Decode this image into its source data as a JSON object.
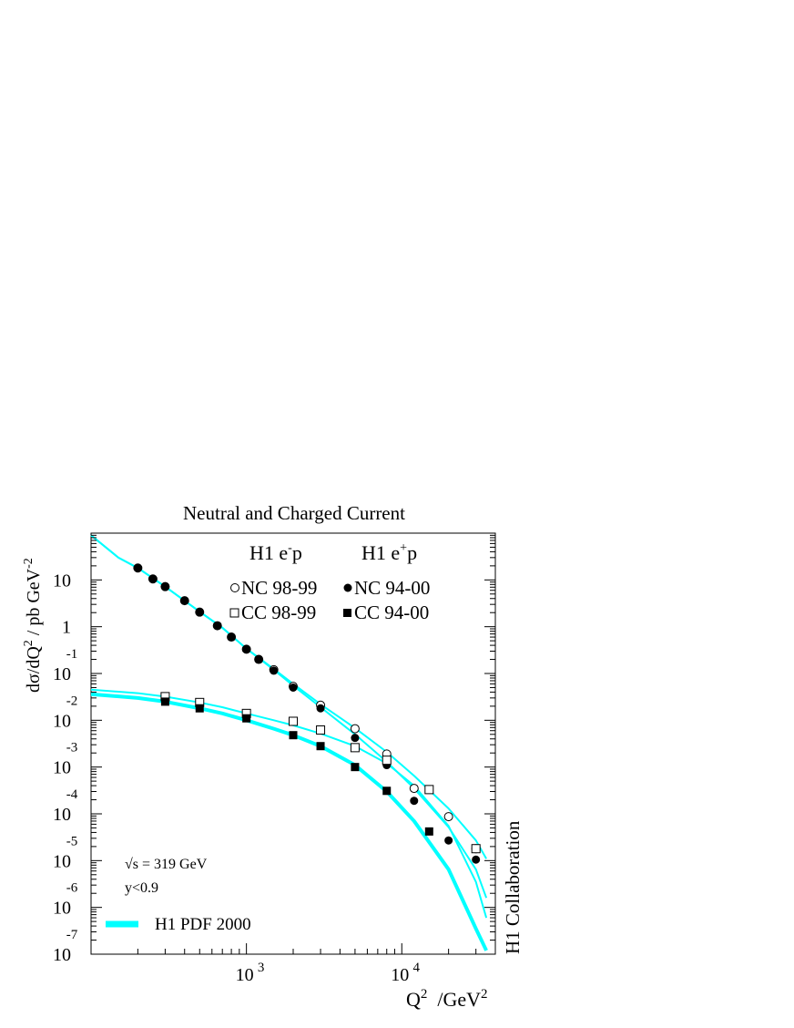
{
  "chart_data": {
    "type": "scatter",
    "title": "Neutral and Charged Current",
    "ylabel_main": "dσ/dQ",
    "ylabel_sup": "2",
    "ylabel_mid": " / pb GeV",
    "ylabel_sup2": "-2",
    "xlabel_main": "Q",
    "xlabel_sup": "2",
    "xlabel_unit": "  /GeV",
    "xlabel_sup2": "2",
    "x_scale": "log",
    "y_scale": "log",
    "xlim": [
      100,
      40000
    ],
    "ylim": [
      1e-07,
      100
    ],
    "x_ticks": [
      {
        "value": 1000,
        "base": "10",
        "exp": "3"
      },
      {
        "value": 10000,
        "base": "10",
        "exp": "4"
      }
    ],
    "y_ticks": [
      {
        "value": 10,
        "base": "10",
        "exp": ""
      },
      {
        "value": 1,
        "base": "1",
        "exp": ""
      },
      {
        "value": 0.1,
        "base": "10",
        "exp": "-1"
      },
      {
        "value": 0.01,
        "base": "10",
        "exp": "-2"
      },
      {
        "value": 0.001,
        "base": "10",
        "exp": "-3"
      },
      {
        "value": 0.0001,
        "base": "10",
        "exp": "-4"
      },
      {
        "value": 1e-05,
        "base": "10",
        "exp": "-5"
      },
      {
        "value": 1e-06,
        "base": "10",
        "exp": "-6"
      },
      {
        "value": 1e-07,
        "base": "10",
        "exp": "-7"
      }
    ],
    "legend": {
      "placement": "top-right",
      "col1_header_main": "H1 e",
      "col1_header_sup": "-",
      "col1_header_tail": "p",
      "col2_header_main": "H1 e",
      "col2_header_sup": "+",
      "col2_header_tail": "p",
      "entries": [
        {
          "label": "NC 98-99",
          "marker": "open-circle"
        },
        {
          "label": "CC 98-99",
          "marker": "open-square"
        },
        {
          "label": "NC 94-00",
          "marker": "filled-circle"
        },
        {
          "label": "CC 94-00",
          "marker": "filled-square"
        }
      ]
    },
    "annotations": [
      "√s = 319 GeV",
      "y<0.9"
    ],
    "model_label": "H1 PDF 2000",
    "side_label": "H1 Collaboration",
    "curve_color": "#00ffff",
    "marker_color": "#000000",
    "series": [
      {
        "name": "NC 98-99",
        "marker": "open-circle",
        "x": [
          200,
          250,
          300,
          400,
          500,
          650,
          800,
          1000,
          1200,
          1500,
          2000,
          3000,
          5000,
          8000,
          12000,
          20000,
          30000
        ],
        "y": [
          18,
          10.5,
          7.2,
          3.6,
          2.05,
          1.05,
          0.6,
          0.33,
          0.2,
          0.12,
          0.053,
          0.021,
          0.0066,
          0.0019,
          0.00035,
          8.7e-05,
          1.8e-05
        ]
      },
      {
        "name": "NC 94-00",
        "marker": "filled-circle",
        "x": [
          200,
          250,
          300,
          400,
          500,
          650,
          800,
          1000,
          1200,
          1500,
          2000,
          3000,
          5000,
          8000,
          12000,
          20000,
          30000
        ],
        "y": [
          18,
          10.5,
          7.2,
          3.6,
          2.05,
          1.05,
          0.6,
          0.33,
          0.2,
          0.115,
          0.05,
          0.018,
          0.0042,
          0.0011,
          0.00019,
          2.7e-05,
          1.05e-05
        ]
      },
      {
        "name": "CC 98-99",
        "marker": "open-square",
        "x": [
          300,
          500,
          1000,
          2000,
          3000,
          5000,
          8000,
          15000,
          30000
        ],
        "y": [
          0.032,
          0.024,
          0.014,
          0.0095,
          0.0062,
          0.0026,
          0.0014,
          0.00033,
          1.8e-05
        ]
      },
      {
        "name": "CC 94-00",
        "marker": "filled-square",
        "x": [
          300,
          500,
          1000,
          2000,
          3000,
          5000,
          8000,
          15000
        ],
        "y": [
          0.025,
          0.018,
          0.011,
          0.0048,
          0.0028,
          0.001,
          0.00031,
          4.2e-05
        ]
      }
    ],
    "curves": [
      {
        "x": [
          100,
          150,
          200,
          300,
          500,
          700,
          1000,
          1500,
          2000,
          3000,
          5000,
          8000,
          12000,
          20000,
          30000,
          35000
        ],
        "y": [
          90,
          30,
          18,
          7.2,
          2.1,
          0.95,
          0.34,
          0.125,
          0.06,
          0.022,
          0.0068,
          0.0021,
          0.00065,
          0.00013,
          2.7e-05,
          1.1e-05
        ]
      },
      {
        "x": [
          100,
          150,
          200,
          300,
          500,
          700,
          1000,
          1500,
          2000,
          3000,
          5000,
          8000,
          12000,
          20000,
          30000,
          35000
        ],
        "y": [
          90,
          30,
          18,
          7.2,
          2.1,
          0.95,
          0.34,
          0.12,
          0.055,
          0.019,
          0.005,
          0.0013,
          0.00035,
          5.2e-05,
          6.5e-06,
          1.6e-06
        ]
      },
      {
        "x": [
          100,
          200,
          300,
          500,
          700,
          1000,
          1500,
          2000,
          3000,
          5000,
          8000,
          12000,
          20000,
          30000,
          35000
        ],
        "y": [
          0.045,
          0.038,
          0.032,
          0.024,
          0.019,
          0.014,
          0.01,
          0.0078,
          0.0052,
          0.0028,
          0.0012,
          0.0004,
          5.5e-05,
          3.5e-06,
          6e-07
        ]
      },
      {
        "x": [
          100,
          200,
          300,
          500,
          700,
          1000,
          1500,
          2000,
          3000,
          5000,
          8000,
          12000,
          20000,
          30000,
          35000
        ],
        "y": [
          0.036,
          0.03,
          0.025,
          0.018,
          0.014,
          0.01,
          0.0066,
          0.0048,
          0.0028,
          0.0011,
          0.0003,
          7e-05,
          6.5e-06,
          3.5e-07,
          1.2e-07
        ]
      }
    ]
  }
}
